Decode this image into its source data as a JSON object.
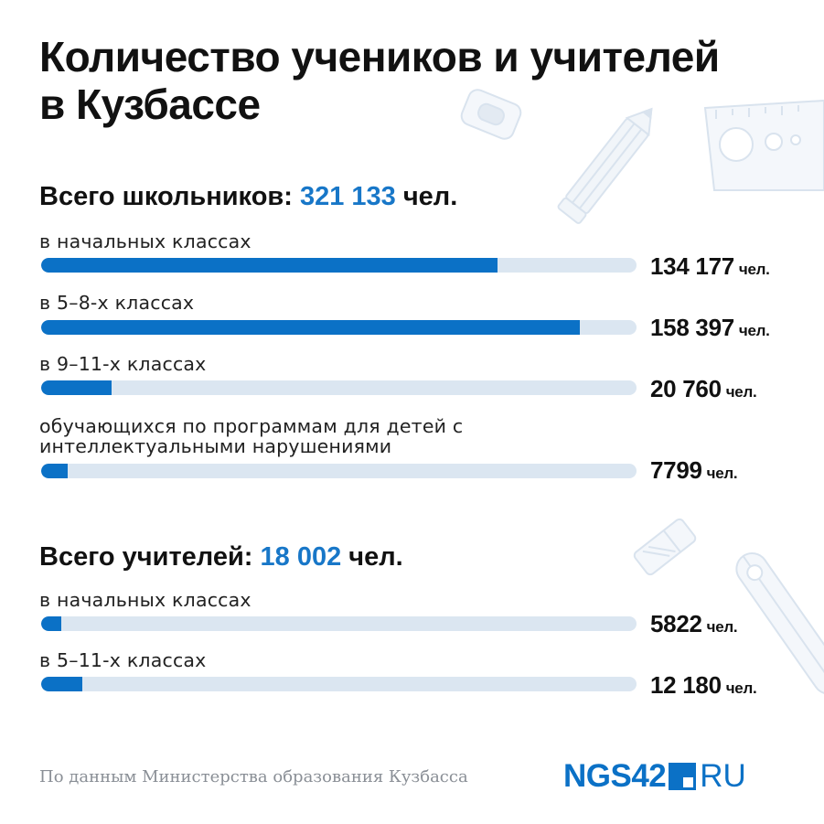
{
  "title_line1": "Количество учеников и учителей",
  "title_line2": "в Кузбассе",
  "unit": "чел.",
  "students": {
    "heading": "Всего школьников:",
    "total": "321 133",
    "unit": "чел."
  },
  "teachers": {
    "heading": "Всего учителей:",
    "total": "18 002",
    "unit": "чел."
  },
  "source": "По данным Министерства образования Кузбасса",
  "logo": {
    "main": "NGS42",
    "suffix": "RU"
  },
  "colors": {
    "accent": "#1877c8",
    "bar_fill": "#0b71c6",
    "bar_track": "#dbe6f1",
    "source_text": "#8a8f96"
  },
  "icons": [
    "eraser-icon",
    "pencil-icon",
    "ruler-icon",
    "pen-icon"
  ],
  "chart_data": [
    {
      "type": "bar",
      "orientation": "horizontal",
      "categories": [
        "в начальных классах",
        "в 5–8-х классах",
        "в 9–11-х классах",
        "обучающихся по программам для детей с интеллектуальными нарушениями"
      ],
      "values": [
        134177,
        158397,
        20760,
        7799
      ],
      "value_labels": [
        "134 177",
        "158 397",
        "20 760",
        "7799"
      ],
      "max": 175000
    },
    {
      "type": "bar",
      "orientation": "horizontal",
      "categories": [
        "в начальных классах",
        "в 5–11-х классах"
      ],
      "values": [
        5822,
        12180
      ],
      "value_labels": [
        "5822",
        "12 180"
      ],
      "max": 175000
    }
  ]
}
